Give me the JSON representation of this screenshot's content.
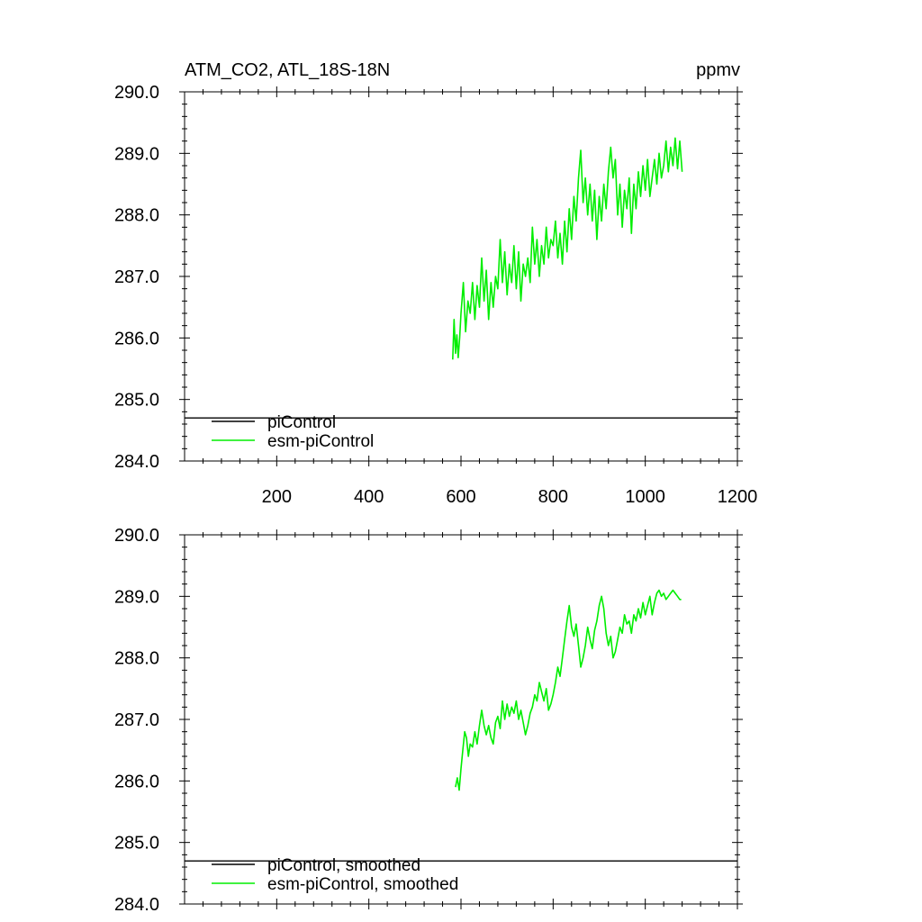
{
  "chart_data": [
    {
      "type": "line",
      "title": "ATM_CO2, ATL_18S-18N",
      "units": "ppmv",
      "xlim": [
        0,
        1200
      ],
      "ylim": [
        284.0,
        290.0
      ],
      "x_ticks": [
        200,
        400,
        600,
        800,
        1000,
        1200
      ],
      "x_tick_labels": [
        "200",
        "400",
        "600",
        "800",
        "1000",
        "1200"
      ],
      "y_ticks": [
        284.0,
        285.0,
        286.0,
        287.0,
        288.0,
        289.0,
        290.0
      ],
      "y_tick_labels": [
        "284.0",
        "285.0",
        "286.0",
        "287.0",
        "288.0",
        "289.0",
        "290.0"
      ],
      "grid": false,
      "legend_placement": "bottom-left",
      "series": [
        {
          "name": "piControl",
          "color": "#000000",
          "x": [
            0,
            1200
          ],
          "y": [
            284.7,
            284.7
          ]
        },
        {
          "name": "esm-piControl",
          "color": "#00ee00",
          "x": [
            582,
            585,
            588,
            591,
            594,
            597,
            600,
            605,
            610,
            615,
            620,
            625,
            630,
            635,
            640,
            645,
            650,
            655,
            660,
            665,
            670,
            675,
            680,
            685,
            690,
            695,
            700,
            705,
            710,
            715,
            720,
            725,
            730,
            735,
            740,
            745,
            750,
            755,
            760,
            765,
            770,
            775,
            780,
            785,
            790,
            795,
            800,
            805,
            810,
            815,
            820,
            825,
            830,
            835,
            840,
            845,
            850,
            855,
            860,
            865,
            870,
            875,
            880,
            885,
            890,
            895,
            900,
            905,
            910,
            915,
            920,
            925,
            930,
            935,
            940,
            945,
            950,
            955,
            960,
            965,
            970,
            975,
            980,
            985,
            990,
            995,
            1000,
            1005,
            1010,
            1015,
            1020,
            1025,
            1030,
            1035,
            1040,
            1045,
            1050,
            1055,
            1060,
            1065,
            1070,
            1075,
            1080
          ],
          "y": [
            285.65,
            286.3,
            285.75,
            286.05,
            285.68,
            286.0,
            286.4,
            286.9,
            286.1,
            286.6,
            286.4,
            286.9,
            286.3,
            286.85,
            286.5,
            287.3,
            286.6,
            287.1,
            286.3,
            286.9,
            286.5,
            287.0,
            286.8,
            287.6,
            286.9,
            287.4,
            286.7,
            287.2,
            286.9,
            287.5,
            286.8,
            287.4,
            286.6,
            287.2,
            287.0,
            287.3,
            286.9,
            287.8,
            287.2,
            287.6,
            287.0,
            287.5,
            287.2,
            287.8,
            287.3,
            287.6,
            287.5,
            287.9,
            287.3,
            287.7,
            287.2,
            287.9,
            287.4,
            288.1,
            287.6,
            288.3,
            287.9,
            288.6,
            289.05,
            288.2,
            288.6,
            288.0,
            288.5,
            287.9,
            288.4,
            287.6,
            288.3,
            287.9,
            288.5,
            288.1,
            288.7,
            289.1,
            288.6,
            288.9,
            288.0,
            288.5,
            287.8,
            288.4,
            288.1,
            288.6,
            287.7,
            288.5,
            288.1,
            288.7,
            288.3,
            288.8,
            288.4,
            288.9,
            288.3,
            288.6,
            288.9,
            288.5,
            289.0,
            288.6,
            288.8,
            289.2,
            288.7,
            289.1,
            288.8,
            289.25,
            288.75,
            289.2,
            288.7
          ]
        }
      ]
    },
    {
      "type": "line",
      "title": "",
      "xlim": [
        0,
        1200
      ],
      "ylim": [
        284.0,
        290.0
      ],
      "x_ticks": [
        200,
        400,
        600,
        800,
        1000,
        1200
      ],
      "y_ticks": [
        284.0,
        285.0,
        286.0,
        287.0,
        288.0,
        289.0,
        290.0
      ],
      "y_tick_labels": [
        "284.0",
        "285.0",
        "286.0",
        "287.0",
        "288.0",
        "289.0",
        "290.0"
      ],
      "grid": false,
      "legend_placement": "bottom-left",
      "series": [
        {
          "name": "piControl, smoothed",
          "color": "#000000",
          "x": [
            0,
            1200
          ],
          "y": [
            284.7,
            284.7
          ]
        },
        {
          "name": "esm-piControl, smoothed",
          "color": "#00ee00",
          "x": [
            588,
            592,
            596,
            600,
            604,
            608,
            612,
            616,
            620,
            625,
            630,
            635,
            640,
            645,
            650,
            655,
            660,
            665,
            670,
            675,
            680,
            685,
            690,
            695,
            700,
            705,
            710,
            715,
            720,
            725,
            730,
            735,
            740,
            745,
            750,
            755,
            760,
            765,
            770,
            775,
            780,
            785,
            790,
            795,
            800,
            805,
            810,
            815,
            820,
            825,
            830,
            835,
            840,
            845,
            850,
            855,
            860,
            865,
            870,
            875,
            880,
            885,
            890,
            895,
            900,
            905,
            910,
            915,
            920,
            925,
            930,
            935,
            940,
            945,
            950,
            955,
            960,
            965,
            970,
            975,
            980,
            985,
            990,
            995,
            1000,
            1005,
            1010,
            1015,
            1020,
            1025,
            1030,
            1035,
            1040,
            1045,
            1050,
            1055,
            1060,
            1065,
            1070,
            1075,
            1078
          ],
          "y": [
            285.9,
            286.05,
            285.85,
            286.2,
            286.5,
            286.8,
            286.7,
            286.4,
            286.6,
            286.55,
            286.8,
            286.6,
            286.9,
            287.15,
            286.9,
            286.75,
            286.9,
            286.7,
            286.6,
            286.95,
            287.05,
            286.85,
            287.3,
            287.0,
            287.25,
            287.05,
            287.2,
            287.1,
            287.3,
            287.0,
            287.15,
            286.95,
            286.75,
            286.9,
            287.1,
            287.2,
            287.4,
            287.3,
            287.6,
            287.45,
            287.3,
            287.5,
            287.15,
            287.25,
            287.4,
            287.6,
            287.85,
            287.7,
            288.0,
            288.3,
            288.6,
            288.85,
            288.5,
            288.35,
            288.55,
            288.2,
            287.85,
            288.0,
            288.2,
            288.5,
            288.3,
            288.15,
            288.45,
            288.6,
            288.85,
            289.0,
            288.8,
            288.4,
            288.2,
            288.35,
            288.0,
            288.1,
            288.3,
            288.5,
            288.4,
            288.7,
            288.55,
            288.6,
            288.4,
            288.7,
            288.6,
            288.8,
            288.65,
            288.9,
            288.7,
            288.85,
            289.0,
            288.7,
            288.9,
            289.05,
            289.1,
            289.0,
            289.05,
            288.95,
            289.0,
            289.05,
            289.1,
            289.05,
            289.0,
            288.95,
            288.95
          ]
        }
      ]
    }
  ]
}
